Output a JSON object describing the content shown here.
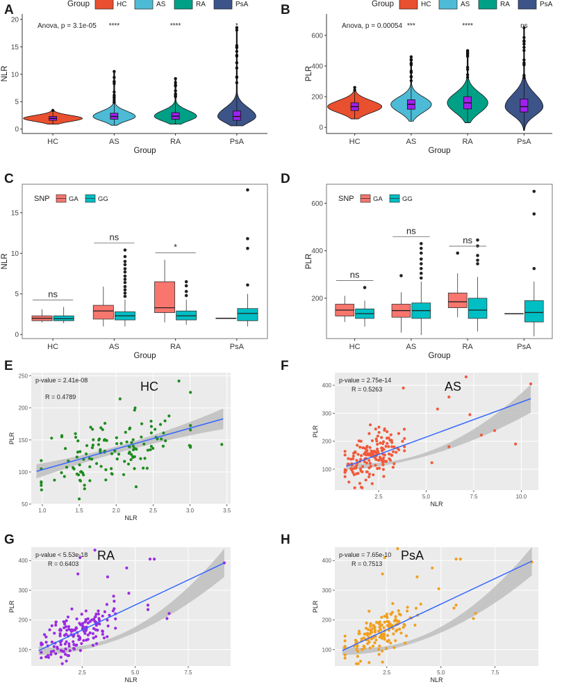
{
  "figure_title": "",
  "colors": {
    "HC": "#E8502F",
    "AS": "#4DBBD5",
    "RA": "#00A087",
    "PsA": "#3C5488",
    "GA": "#F8766D",
    "GG": "#00BFC4",
    "box": "#A020F0",
    "scatter_HC": "#1E8B1E",
    "scatter_AS": "#F05A3C",
    "scatter_RA": "#9A2BE0",
    "scatter_PsA": "#F0A020",
    "fit": "#3366FF",
    "band": "#BEBEBE",
    "panel_bg": "#EBEBEB"
  },
  "chart_data": [
    {
      "panel": "A",
      "type": "violin",
      "legend_title": "Group",
      "legend": [
        "HC",
        "AS",
        "RA",
        "PsA"
      ],
      "categories": [
        "HC",
        "AS",
        "RA",
        "PsA"
      ],
      "xlabel": "Group",
      "ylabel": "NLR",
      "ylim": [
        -0.8,
        21
      ],
      "yticks": [
        0,
        5,
        10,
        15,
        20
      ],
      "stat_text": "Anova, p = 3.1e-05",
      "signif": [
        "****",
        "****",
        "*"
      ],
      "groups": [
        {
          "name": "HC",
          "min": 0.9,
          "q1": 1.6,
          "median": 1.95,
          "q3": 2.3,
          "max": 3.4,
          "width": 1.0
        },
        {
          "name": "AS",
          "min": 0.7,
          "q1": 1.8,
          "median": 2.3,
          "q3": 2.9,
          "max": 10.5,
          "width": 0.72
        },
        {
          "name": "RA",
          "min": 0.9,
          "q1": 1.8,
          "median": 2.35,
          "q3": 3.0,
          "max": 9.2,
          "width": 0.72
        },
        {
          "name": "PsA",
          "min": 0.6,
          "q1": 1.6,
          "median": 2.3,
          "q3": 3.3,
          "max": 18.5,
          "width": 0.65
        }
      ]
    },
    {
      "panel": "B",
      "type": "violin",
      "legend_title": "Group",
      "legend": [
        "HC",
        "AS",
        "RA",
        "PsA"
      ],
      "categories": [
        "HC",
        "AS",
        "RA",
        "PsA"
      ],
      "xlabel": "Group",
      "ylabel": "PLR",
      "ylim": [
        -40,
        740
      ],
      "yticks": [
        0,
        200,
        400,
        600
      ],
      "stat_text": "Anova, p = 0.00054",
      "signif": [
        "***",
        "****",
        "ns"
      ],
      "groups": [
        {
          "name": "HC",
          "min": 55,
          "q1": 110,
          "median": 135,
          "q3": 160,
          "max": 260,
          "width": 1.0
        },
        {
          "name": "AS",
          "min": 40,
          "q1": 118,
          "median": 150,
          "q3": 180,
          "max": 460,
          "width": 0.75
        },
        {
          "name": "RA",
          "min": 30,
          "q1": 120,
          "median": 160,
          "q3": 200,
          "max": 500,
          "width": 0.75
        },
        {
          "name": "PsA",
          "min": -20,
          "q1": 100,
          "median": 135,
          "q3": 185,
          "max": 650,
          "width": 0.7
        }
      ]
    },
    {
      "panel": "C",
      "type": "boxplot",
      "legend_title": "SNP",
      "legend": [
        "GA",
        "GG"
      ],
      "categories": [
        "HC",
        "AS",
        "RA",
        "PsA"
      ],
      "xlabel": "Group",
      "ylabel": "NLR",
      "ylim": [
        -0.5,
        18.5
      ],
      "yticks": [
        0,
        5,
        10,
        15
      ],
      "signif": [
        "ns",
        "ns",
        "*",
        ""
      ],
      "series": [
        {
          "name": "GA",
          "boxes": [
            {
              "min": 1.5,
              "q1": 1.7,
              "median": 2.0,
              "q3": 2.3,
              "max": 3.1,
              "outliers": []
            },
            {
              "min": 1.0,
              "q1": 1.9,
              "median": 2.9,
              "q3": 3.6,
              "max": 5.9,
              "outliers": []
            },
            {
              "min": 1.5,
              "q1": 2.7,
              "median": 3.3,
              "q3": 6.5,
              "max": 9.2,
              "outliers": []
            },
            {
              "min": 2.0,
              "q1": 2.0,
              "median": 2.0,
              "q3": 2.0,
              "max": 2.0,
              "outliers": []
            }
          ]
        },
        {
          "name": "GG",
          "boxes": [
            {
              "min": 1.4,
              "q1": 1.7,
              "median": 1.95,
              "q3": 2.3,
              "max": 3.4,
              "outliers": []
            },
            {
              "min": 1.0,
              "q1": 1.8,
              "median": 2.3,
              "q3": 2.8,
              "max": 4.3,
              "outliers": [
                4.7,
                5.1,
                5.5,
                5.9,
                6.4,
                6.8,
                7.2,
                7.7,
                8.1,
                8.6,
                9.0,
                9.6,
                10.4
              ]
            },
            {
              "min": 1.2,
              "q1": 1.8,
              "median": 2.3,
              "q3": 2.9,
              "max": 4.3,
              "outliers": [
                4.8,
                5.3,
                6.0,
                6.5
              ]
            },
            {
              "min": 1.0,
              "q1": 1.7,
              "median": 2.6,
              "q3": 3.2,
              "max": 5.0,
              "outliers": [
                6.1,
                10.6,
                11.8,
                17.8
              ]
            }
          ]
        }
      ]
    },
    {
      "panel": "D",
      "type": "boxplot",
      "legend_title": "SNP",
      "legend": [
        "GA",
        "GG"
      ],
      "categories": [
        "HC",
        "AS",
        "RA",
        "PsA"
      ],
      "xlabel": "Group",
      "ylabel": "PLR",
      "ylim": [
        30,
        680
      ],
      "yticks": [
        200,
        400,
        600
      ],
      "signif": [
        "ns",
        "ns",
        "ns",
        ""
      ],
      "series": [
        {
          "name": "GA",
          "boxes": [
            {
              "min": 100,
              "q1": 125,
              "median": 150,
              "q3": 175,
              "max": 210,
              "outliers": []
            },
            {
              "min": 55,
              "q1": 120,
              "median": 148,
              "q3": 175,
              "max": 225,
              "outliers": [
                295
              ]
            },
            {
              "min": 120,
              "q1": 160,
              "median": 185,
              "q3": 222,
              "max": 305,
              "outliers": [
                390
              ]
            },
            {
              "min": 135,
              "q1": 135,
              "median": 135,
              "q3": 135,
              "max": 135,
              "outliers": []
            }
          ]
        },
        {
          "name": "GG",
          "boxes": [
            {
              "min": 80,
              "q1": 115,
              "median": 135,
              "q3": 155,
              "max": 190,
              "outliers": [
                245
              ]
            },
            {
              "min": 45,
              "q1": 115,
              "median": 148,
              "q3": 180,
              "max": 270,
              "outliers": [
                285,
                305,
                325,
                345,
                365,
                390,
                410,
                430
              ]
            },
            {
              "min": 60,
              "q1": 115,
              "median": 150,
              "q3": 200,
              "max": 290,
              "outliers": [
                345,
                360,
                380,
                420,
                445
              ]
            },
            {
              "min": 40,
              "q1": 100,
              "median": 140,
              "q3": 190,
              "max": 270,
              "outliers": [
                325,
                555,
                650
              ]
            }
          ]
        }
      ]
    },
    {
      "panel": "E",
      "type": "scatter",
      "group_label": "HC",
      "xlabel": "NLR",
      "ylabel": "PLR",
      "xlim": [
        0.85,
        3.55
      ],
      "ylim": [
        50,
        255
      ],
      "xticks": [
        1.0,
        1.5,
        2.0,
        2.5,
        3.0,
        3.5
      ],
      "yticks": [
        50,
        100,
        150,
        200,
        250
      ],
      "pvalue": "p-value = 2.41e-08",
      "r_text": "R = 0.4789",
      "fit": {
        "x0": 0.92,
        "y0": 101,
        "x1": 3.45,
        "y1": 183
      },
      "band": {
        "low0": 90,
        "high0": 112,
        "lowm": 135,
        "highm": 146,
        "low1": 167,
        "high1": 199
      },
      "n": 130,
      "seed": 11,
      "x_mean": 1.95,
      "x_sd": 0.48,
      "noise": 28,
      "extra_points": [
        [
          2.85,
          242
        ],
        [
          3.43,
          143
        ],
        [
          1.5,
          58
        ],
        [
          2.27,
          77
        ]
      ]
    },
    {
      "panel": "F",
      "type": "scatter",
      "group_label": "AS",
      "xlabel": "NLR",
      "ylabel": "PLR",
      "xlim": [
        0.2,
        10.9
      ],
      "ylim": [
        25,
        445
      ],
      "xticks": [
        2.5,
        5.0,
        7.5,
        10.0
      ],
      "yticks": [
        100,
        200,
        300,
        400
      ],
      "pvalue": "p-value = 2.75e-14",
      "r_text": "R = 0.5263",
      "fit": {
        "x0": 0.8,
        "y0": 110,
        "x1": 10.5,
        "y1": 352
      },
      "band": {
        "low0": 97,
        "high0": 123,
        "lowm": 160,
        "highm": 177,
        "low1": 302,
        "high1": 402
      },
      "n": 170,
      "seed": 23,
      "x_mean": 2.1,
      "x_sd": 0.8,
      "noise": 38,
      "extra_points": [
        [
          7.1,
          430
        ],
        [
          10.5,
          405
        ],
        [
          3.8,
          390
        ],
        [
          6.2,
          358
        ],
        [
          5.6,
          315
        ],
        [
          7.3,
          295
        ],
        [
          8.6,
          238
        ],
        [
          7.9,
          222
        ],
        [
          9.7,
          190
        ],
        [
          5.3,
          123
        ],
        [
          6.2,
          180
        ]
      ]
    },
    {
      "panel": "G",
      "type": "scatter",
      "group_label": "RA",
      "xlabel": "NLR",
      "ylabel": "PLR",
      "xlim": [
        0.1,
        9.5
      ],
      "ylim": [
        45,
        445
      ],
      "xticks": [
        2.5,
        5.0,
        7.5
      ],
      "yticks": [
        100,
        200,
        300,
        400
      ],
      "pvalue": "p-value < 5.53e-18",
      "r_text": "R = 0.6403",
      "fit": {
        "x0": 0.45,
        "y0": 97,
        "x1": 9.2,
        "y1": 392
      },
      "band": {
        "low0": 82,
        "high0": 112,
        "lowm": 152,
        "highm": 170,
        "low1": 345,
        "high1": 440
      },
      "n": 160,
      "seed": 37,
      "x_mean": 2.2,
      "x_sd": 0.85,
      "noise": 36,
      "extra_points": [
        [
          2.4,
          410
        ],
        [
          3.1,
          435
        ],
        [
          5.7,
          405
        ],
        [
          5.9,
          405
        ],
        [
          4.6,
          375
        ],
        [
          3.7,
          345
        ],
        [
          4.7,
          290
        ],
        [
          5.6,
          250
        ],
        [
          6.6,
          222
        ],
        [
          6.5,
          205
        ],
        [
          5.6,
          235
        ],
        [
          2.3,
          355
        ],
        [
          9.2,
          392
        ]
      ]
    },
    {
      "panel": "H",
      "type": "scatter",
      "group_label": "PsA",
      "xlabel": "NLR",
      "ylabel": "PLR",
      "xlim": [
        0.1,
        9.5
      ],
      "ylim": [
        45,
        445
      ],
      "xticks": [
        2.5,
        5.0,
        7.5
      ],
      "yticks": [
        100,
        200,
        300,
        400
      ],
      "pvalue": "p-value = 7.65e-10",
      "r_text": "R = 0.7513",
      "fit": {
        "x0": 0.45,
        "y0": 97,
        "x1": 9.2,
        "y1": 398
      },
      "band": {
        "low0": 82,
        "high0": 112,
        "lowm": 152,
        "highm": 170,
        "low1": 350,
        "high1": 445
      },
      "n": 160,
      "seed": 53,
      "x_mean": 2.2,
      "x_sd": 0.85,
      "noise": 36,
      "extra_points": [
        [
          2.4,
          410
        ],
        [
          3.0,
          440
        ],
        [
          5.7,
          405
        ],
        [
          5.9,
          405
        ],
        [
          4.6,
          375
        ],
        [
          3.9,
          345
        ],
        [
          4.9,
          305
        ],
        [
          5.7,
          250
        ],
        [
          6.6,
          222
        ],
        [
          6.5,
          205
        ],
        [
          5.6,
          240
        ],
        [
          2.3,
          355
        ],
        [
          9.2,
          395
        ]
      ]
    }
  ]
}
